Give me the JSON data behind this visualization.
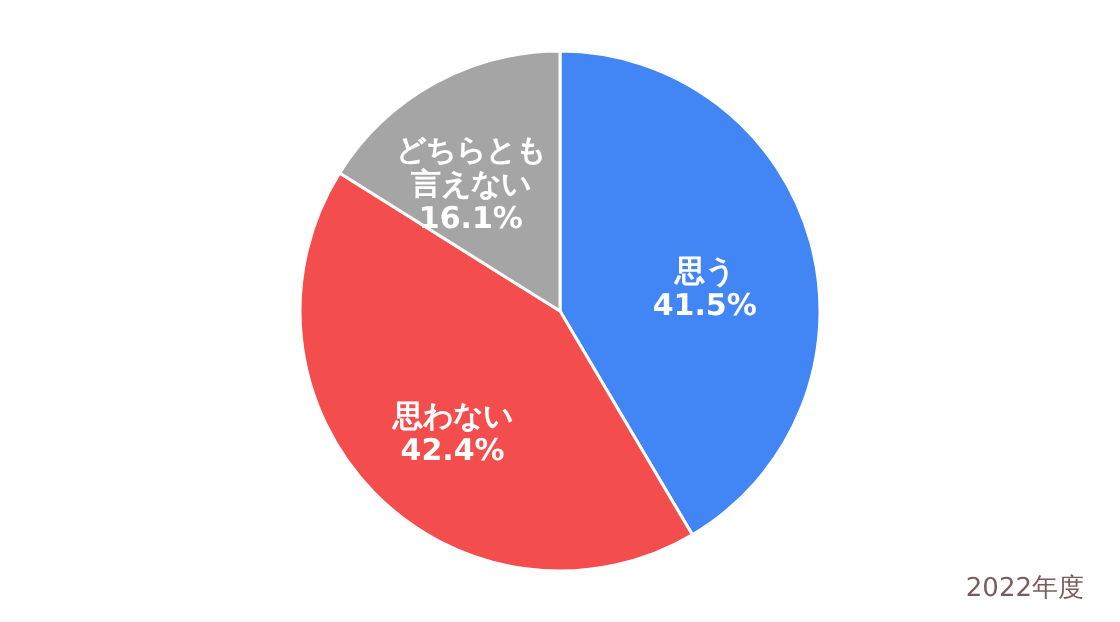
{
  "chart_data": {
    "type": "pie",
    "categories": [
      "思う",
      "思わない",
      "どちらとも言えない"
    ],
    "values": [
      41.5,
      42.4,
      16.1
    ],
    "colors": [
      "#4285f4",
      "#f44d4d",
      "#a5a5a5"
    ],
    "value_labels": [
      "41.5%",
      "42.4%",
      "16.1%"
    ],
    "annotations": [
      "2022年度"
    ],
    "legend": false
  }
}
